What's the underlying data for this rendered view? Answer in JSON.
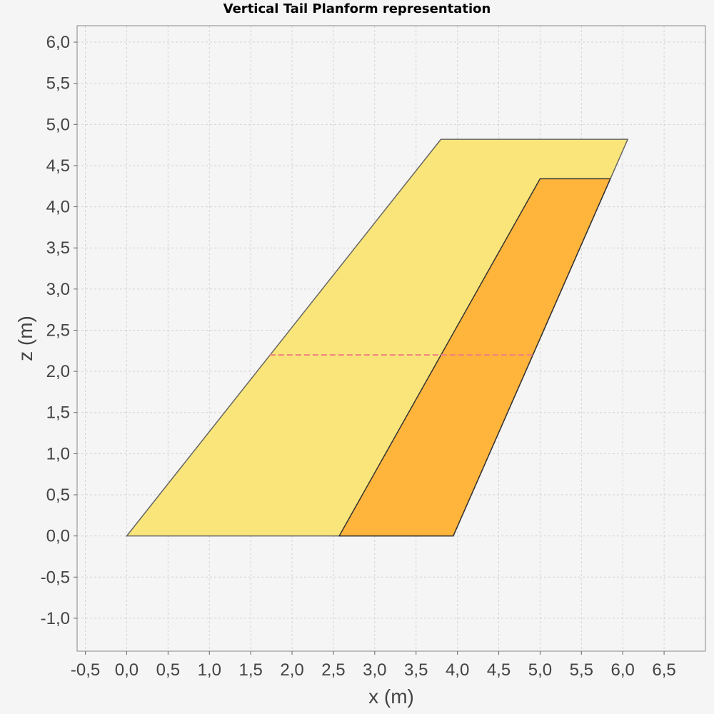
{
  "chart_data": {
    "type": "area",
    "title": "Vertical Tail Planform representation",
    "xlabel": "x (m)",
    "ylabel": "z (m)",
    "xlim": [
      -0.6,
      7.0
    ],
    "ylim": [
      -1.4,
      6.2
    ],
    "x_ticks": [
      "-0,5",
      "0,0",
      "0,5",
      "1,0",
      "1,5",
      "2,0",
      "2,5",
      "3,0",
      "3,5",
      "4,0",
      "4,5",
      "5,0",
      "5,5",
      "6,0",
      "6,5"
    ],
    "x_tick_values": [
      -0.5,
      0.0,
      0.5,
      1.0,
      1.5,
      2.0,
      2.5,
      3.0,
      3.5,
      4.0,
      4.5,
      5.0,
      5.5,
      6.0,
      6.5
    ],
    "y_ticks": [
      "-1,0",
      "-0,5",
      "0,0",
      "0,5",
      "1,0",
      "1,5",
      "2,0",
      "2,5",
      "3,0",
      "3,5",
      "4,0",
      "4,5",
      "5,0",
      "5,5",
      "6,0"
    ],
    "y_tick_values": [
      -1.0,
      -0.5,
      0.0,
      0.5,
      1.0,
      1.5,
      2.0,
      2.5,
      3.0,
      3.5,
      4.0,
      4.5,
      5.0,
      5.5,
      6.0
    ],
    "grid": true,
    "series": [
      {
        "x": [
          0.0,
          3.8,
          6.06,
          3.95,
          0.0
        ],
        "y": [
          0.0,
          4.82,
          4.82,
          0.0,
          0.0
        ],
        "fill": "#fae57a",
        "stroke": "#666666"
      },
      {
        "x": [
          2.57,
          5.0,
          5.85,
          3.95,
          2.57
        ],
        "y": [
          0.0,
          4.34,
          4.34,
          0.0,
          0.0
        ],
        "fill": "#ffb43c",
        "stroke": "#333333"
      },
      {
        "x": [
          1.73,
          4.92
        ],
        "y": [
          2.2,
          2.2
        ],
        "stroke": "#f08080",
        "dashed": true
      }
    ]
  }
}
